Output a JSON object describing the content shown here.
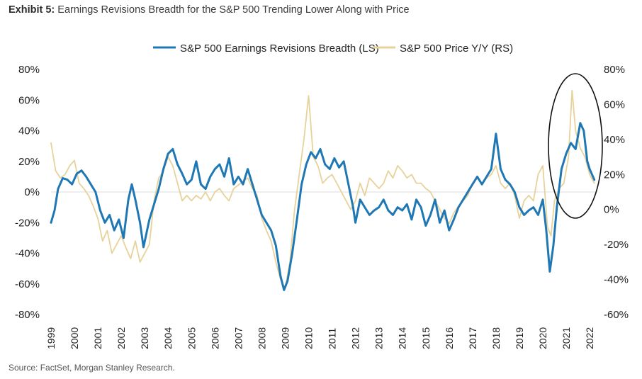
{
  "header": {
    "exhibit_label": "Exhibit 5:",
    "title": "Earnings Revisions Breadth for the S&P 500 Trending Lower Along with Price"
  },
  "footer": {
    "source": "Source: FactSet, Morgan Stanley Research."
  },
  "colors": {
    "breadth": "#1f78b4",
    "price": "#e6d29a",
    "zero_line": "#e3e3e3",
    "circle": "#111111"
  },
  "chart_data": {
    "type": "line",
    "title": "Earnings Revisions Breadth for the S&P 500 Trending Lower Along with Price",
    "x_axis": {
      "ticks": [
        "1999",
        "2000",
        "2001",
        "2002",
        "2003",
        "2004",
        "2005",
        "2006",
        "2007",
        "2008",
        "2009",
        "2010",
        "2011",
        "2012",
        "2013",
        "2014",
        "2015",
        "2016",
        "2017",
        "2018",
        "2019",
        "2020",
        "2021",
        "2022"
      ],
      "range": [
        1999,
        2022.3
      ]
    },
    "y_left": {
      "ticks": [
        "80%",
        "60%",
        "40%",
        "20%",
        "0%",
        "-20%",
        "-40%",
        "-60%",
        "-80%"
      ],
      "range": [
        -80,
        80
      ]
    },
    "y_right": {
      "ticks": [
        "80%",
        "60%",
        "40%",
        "20%",
        "0%",
        "-20%",
        "-40%",
        "-60%"
      ],
      "range": [
        -60,
        80
      ]
    },
    "legend": {
      "position": "top-center"
    },
    "annotation": "ellipse around 2021-2022",
    "series": [
      {
        "name": "S&P 500 Earnings Revisions Breadth (LS)",
        "axis": "left",
        "points": [
          [
            1999.0,
            -20
          ],
          [
            1999.15,
            -12
          ],
          [
            1999.3,
            2
          ],
          [
            1999.5,
            9
          ],
          [
            1999.7,
            8
          ],
          [
            1999.9,
            5
          ],
          [
            2000.1,
            12
          ],
          [
            2000.3,
            14
          ],
          [
            2000.5,
            10
          ],
          [
            2000.7,
            5
          ],
          [
            2000.9,
            0
          ],
          [
            2001.1,
            -12
          ],
          [
            2001.3,
            -20
          ],
          [
            2001.5,
            -15
          ],
          [
            2001.7,
            -25
          ],
          [
            2001.9,
            -18
          ],
          [
            2002.1,
            -30
          ],
          [
            2002.3,
            -5
          ],
          [
            2002.45,
            5
          ],
          [
            2002.6,
            -5
          ],
          [
            2002.8,
            -20
          ],
          [
            2002.95,
            -36
          ],
          [
            2003.2,
            -18
          ],
          [
            2003.4,
            -8
          ],
          [
            2003.6,
            2
          ],
          [
            2003.8,
            15
          ],
          [
            2004.0,
            25
          ],
          [
            2004.2,
            28
          ],
          [
            2004.4,
            18
          ],
          [
            2004.6,
            12
          ],
          [
            2004.8,
            5
          ],
          [
            2005.0,
            8
          ],
          [
            2005.2,
            20
          ],
          [
            2005.4,
            5
          ],
          [
            2005.6,
            2
          ],
          [
            2005.8,
            10
          ],
          [
            2006.0,
            15
          ],
          [
            2006.2,
            18
          ],
          [
            2006.4,
            10
          ],
          [
            2006.6,
            22
          ],
          [
            2006.8,
            5
          ],
          [
            2007.0,
            10
          ],
          [
            2007.2,
            5
          ],
          [
            2007.4,
            15
          ],
          [
            2007.6,
            5
          ],
          [
            2007.8,
            -5
          ],
          [
            2008.0,
            -15
          ],
          [
            2008.2,
            -20
          ],
          [
            2008.4,
            -25
          ],
          [
            2008.6,
            -35
          ],
          [
            2008.8,
            -55
          ],
          [
            2008.95,
            -64
          ],
          [
            2009.1,
            -58
          ],
          [
            2009.3,
            -40
          ],
          [
            2009.5,
            -18
          ],
          [
            2009.7,
            5
          ],
          [
            2009.9,
            18
          ],
          [
            2010.1,
            26
          ],
          [
            2010.3,
            22
          ],
          [
            2010.5,
            28
          ],
          [
            2010.7,
            18
          ],
          [
            2010.9,
            15
          ],
          [
            2011.1,
            22
          ],
          [
            2011.3,
            16
          ],
          [
            2011.5,
            20
          ],
          [
            2011.7,
            5
          ],
          [
            2011.9,
            -10
          ],
          [
            2012.0,
            -20
          ],
          [
            2012.2,
            -5
          ],
          [
            2012.4,
            -10
          ],
          [
            2012.6,
            -15
          ],
          [
            2012.8,
            -12
          ],
          [
            2013.0,
            -10
          ],
          [
            2013.2,
            -5
          ],
          [
            2013.4,
            -12
          ],
          [
            2013.6,
            -15
          ],
          [
            2013.8,
            -10
          ],
          [
            2014.0,
            -12
          ],
          [
            2014.2,
            -8
          ],
          [
            2014.4,
            -18
          ],
          [
            2014.6,
            -5
          ],
          [
            2014.8,
            -10
          ],
          [
            2015.0,
            -22
          ],
          [
            2015.2,
            -15
          ],
          [
            2015.4,
            -5
          ],
          [
            2015.6,
            -20
          ],
          [
            2015.8,
            -12
          ],
          [
            2016.0,
            -25
          ],
          [
            2016.2,
            -18
          ],
          [
            2016.4,
            -10
          ],
          [
            2016.6,
            -5
          ],
          [
            2016.8,
            0
          ],
          [
            2017.0,
            5
          ],
          [
            2017.2,
            10
          ],
          [
            2017.4,
            5
          ],
          [
            2017.6,
            10
          ],
          [
            2017.8,
            15
          ],
          [
            2018.0,
            38
          ],
          [
            2018.2,
            15
          ],
          [
            2018.4,
            8
          ],
          [
            2018.6,
            5
          ],
          [
            2018.8,
            0
          ],
          [
            2019.0,
            -10
          ],
          [
            2019.2,
            -15
          ],
          [
            2019.4,
            -12
          ],
          [
            2019.6,
            -10
          ],
          [
            2019.8,
            -15
          ],
          [
            2020.0,
            -5
          ],
          [
            2020.15,
            -25
          ],
          [
            2020.3,
            -52
          ],
          [
            2020.45,
            -35
          ],
          [
            2020.6,
            -10
          ],
          [
            2020.8,
            15
          ],
          [
            2021.0,
            25
          ],
          [
            2021.2,
            32
          ],
          [
            2021.4,
            28
          ],
          [
            2021.6,
            45
          ],
          [
            2021.75,
            40
          ],
          [
            2021.9,
            20
          ],
          [
            2022.0,
            15
          ],
          [
            2022.2,
            8
          ]
        ]
      },
      {
        "name": "S&P 500 Price Y/Y (RS)",
        "axis": "right",
        "points": [
          [
            1999.0,
            38
          ],
          [
            1999.2,
            22
          ],
          [
            1999.4,
            18
          ],
          [
            1999.6,
            20
          ],
          [
            1999.8,
            25
          ],
          [
            2000.0,
            28
          ],
          [
            2000.2,
            15
          ],
          [
            2000.4,
            12
          ],
          [
            2000.6,
            8
          ],
          [
            2000.8,
            2
          ],
          [
            2001.0,
            -5
          ],
          [
            2001.2,
            -18
          ],
          [
            2001.4,
            -12
          ],
          [
            2001.6,
            -25
          ],
          [
            2001.8,
            -20
          ],
          [
            2002.0,
            -15
          ],
          [
            2002.2,
            -22
          ],
          [
            2002.4,
            -28
          ],
          [
            2002.6,
            -18
          ],
          [
            2002.8,
            -30
          ],
          [
            2003.0,
            -25
          ],
          [
            2003.2,
            -20
          ],
          [
            2003.4,
            5
          ],
          [
            2003.6,
            18
          ],
          [
            2003.8,
            22
          ],
          [
            2004.0,
            30
          ],
          [
            2004.2,
            25
          ],
          [
            2004.4,
            15
          ],
          [
            2004.6,
            5
          ],
          [
            2004.8,
            8
          ],
          [
            2005.0,
            5
          ],
          [
            2005.2,
            8
          ],
          [
            2005.4,
            6
          ],
          [
            2005.6,
            10
          ],
          [
            2005.8,
            5
          ],
          [
            2006.0,
            10
          ],
          [
            2006.2,
            12
          ],
          [
            2006.4,
            8
          ],
          [
            2006.6,
            5
          ],
          [
            2006.8,
            12
          ],
          [
            2007.0,
            14
          ],
          [
            2007.2,
            16
          ],
          [
            2007.4,
            18
          ],
          [
            2007.6,
            12
          ],
          [
            2007.8,
            8
          ],
          [
            2008.0,
            -5
          ],
          [
            2008.2,
            -12
          ],
          [
            2008.4,
            -18
          ],
          [
            2008.6,
            -30
          ],
          [
            2008.8,
            -40
          ],
          [
            2009.0,
            -45
          ],
          [
            2009.2,
            -30
          ],
          [
            2009.4,
            0
          ],
          [
            2009.6,
            20
          ],
          [
            2009.8,
            40
          ],
          [
            2010.0,
            65
          ],
          [
            2010.2,
            30
          ],
          [
            2010.4,
            25
          ],
          [
            2010.6,
            15
          ],
          [
            2010.8,
            18
          ],
          [
            2011.0,
            20
          ],
          [
            2011.2,
            15
          ],
          [
            2011.4,
            10
          ],
          [
            2011.6,
            5
          ],
          [
            2011.8,
            0
          ],
          [
            2012.0,
            5
          ],
          [
            2012.2,
            15
          ],
          [
            2012.4,
            8
          ],
          [
            2012.6,
            18
          ],
          [
            2012.8,
            15
          ],
          [
            2013.0,
            12
          ],
          [
            2013.2,
            15
          ],
          [
            2013.4,
            22
          ],
          [
            2013.6,
            18
          ],
          [
            2013.8,
            25
          ],
          [
            2014.0,
            22
          ],
          [
            2014.2,
            18
          ],
          [
            2014.4,
            20
          ],
          [
            2014.6,
            15
          ],
          [
            2014.8,
            15
          ],
          [
            2015.0,
            12
          ],
          [
            2015.2,
            10
          ],
          [
            2015.4,
            5
          ],
          [
            2015.6,
            0
          ],
          [
            2015.8,
            -5
          ],
          [
            2016.0,
            -8
          ],
          [
            2016.2,
            -2
          ],
          [
            2016.4,
            2
          ],
          [
            2016.6,
            5
          ],
          [
            2016.8,
            8
          ],
          [
            2017.0,
            15
          ],
          [
            2017.2,
            18
          ],
          [
            2017.4,
            15
          ],
          [
            2017.6,
            18
          ],
          [
            2017.8,
            20
          ],
          [
            2018.0,
            25
          ],
          [
            2018.2,
            15
          ],
          [
            2018.4,
            12
          ],
          [
            2018.6,
            15
          ],
          [
            2018.8,
            8
          ],
          [
            2019.0,
            -5
          ],
          [
            2019.2,
            5
          ],
          [
            2019.4,
            8
          ],
          [
            2019.6,
            5
          ],
          [
            2019.8,
            20
          ],
          [
            2020.0,
            25
          ],
          [
            2020.2,
            -10
          ],
          [
            2020.35,
            -15
          ],
          [
            2020.5,
            5
          ],
          [
            2020.7,
            12
          ],
          [
            2020.9,
            15
          ],
          [
            2021.1,
            30
          ],
          [
            2021.25,
            68
          ],
          [
            2021.4,
            45
          ],
          [
            2021.6,
            35
          ],
          [
            2021.8,
            30
          ],
          [
            2022.0,
            20
          ],
          [
            2022.2,
            15
          ]
        ]
      }
    ]
  }
}
